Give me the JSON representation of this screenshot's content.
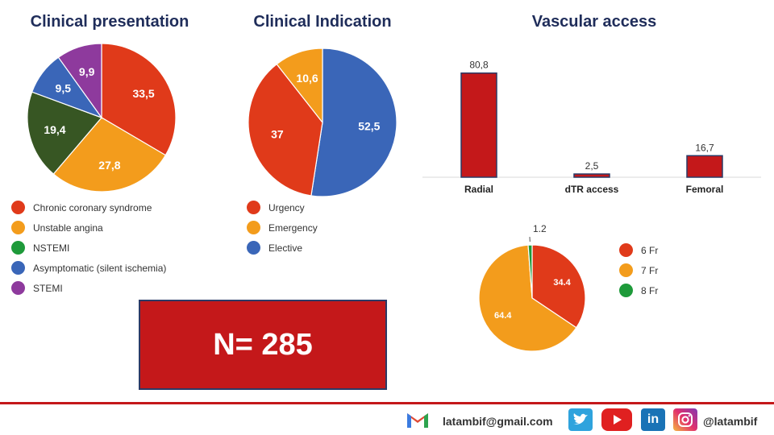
{
  "charts": {
    "presentation": {
      "type": "pie",
      "title": "Clinical presentation",
      "slices": [
        {
          "label": "Chronic coronary syndrome",
          "value": 33.5,
          "display": "33,5",
          "color": "#e03a1a"
        },
        {
          "label": "Unstable angina",
          "value": 27.8,
          "display": "27,8",
          "color": "#f39c1c"
        },
        {
          "label": "NSTEMI",
          "value": 19.4,
          "display": "19,4",
          "color": "#1e9a3a",
          "slice_color": "#375623"
        },
        {
          "label": "Asymptomatic (silent ischemia)",
          "value": 9.5,
          "display": "9,5",
          "color": "#3a66b8"
        },
        {
          "label": "STEMI",
          "value": 9.9,
          "display": "9,9",
          "color": "#8e3a9d"
        }
      ]
    },
    "indication": {
      "type": "pie",
      "title": "Clinical Indication",
      "slices": [
        {
          "label": "Elective",
          "value": 52.5,
          "display": "52,5",
          "color": "#3a66b8"
        },
        {
          "label": "Urgency",
          "value": 37,
          "display": "37",
          "color": "#e03a1a"
        },
        {
          "label": "Emergency",
          "value": 10.6,
          "display": "10,6",
          "color": "#f39c1c"
        }
      ],
      "legend_order": [
        "Urgency",
        "Emergency",
        "Elective"
      ]
    },
    "access": {
      "type": "bar",
      "title": "Vascular access",
      "categories": [
        "Radial",
        "dTR access",
        "Femoral"
      ],
      "values": [
        80.8,
        2.5,
        16.7
      ],
      "labels": [
        "80,8",
        "2,5",
        "16,7"
      ],
      "bar_color": "#c4181a",
      "border_color": "#2b3a66",
      "ylim": [
        0,
        100
      ]
    },
    "sheath": {
      "type": "pie",
      "slices": [
        {
          "label": "6 Fr",
          "value": 34.4,
          "display": "34.4",
          "color": "#e03a1a"
        },
        {
          "label": "7 Fr",
          "value": 64.4,
          "display": "64.4",
          "color": "#f39c1c"
        },
        {
          "label": "8 Fr",
          "value": 1.2,
          "display": "1.2",
          "color": "#1e9a3a"
        }
      ]
    }
  },
  "total_box": "N= 285",
  "footer": {
    "email": "latambif@gmail.com",
    "handle": "@latambif",
    "icons": [
      "gmail-icon",
      "twitter-icon",
      "youtube-icon",
      "linkedin-icon",
      "instagram-icon"
    ],
    "colors": {
      "rule": "#c4181a",
      "twitter": "#2fa3dd",
      "youtube": "#e02020",
      "linkedin": "#1a73b6",
      "instagram": "#c1358e"
    }
  }
}
